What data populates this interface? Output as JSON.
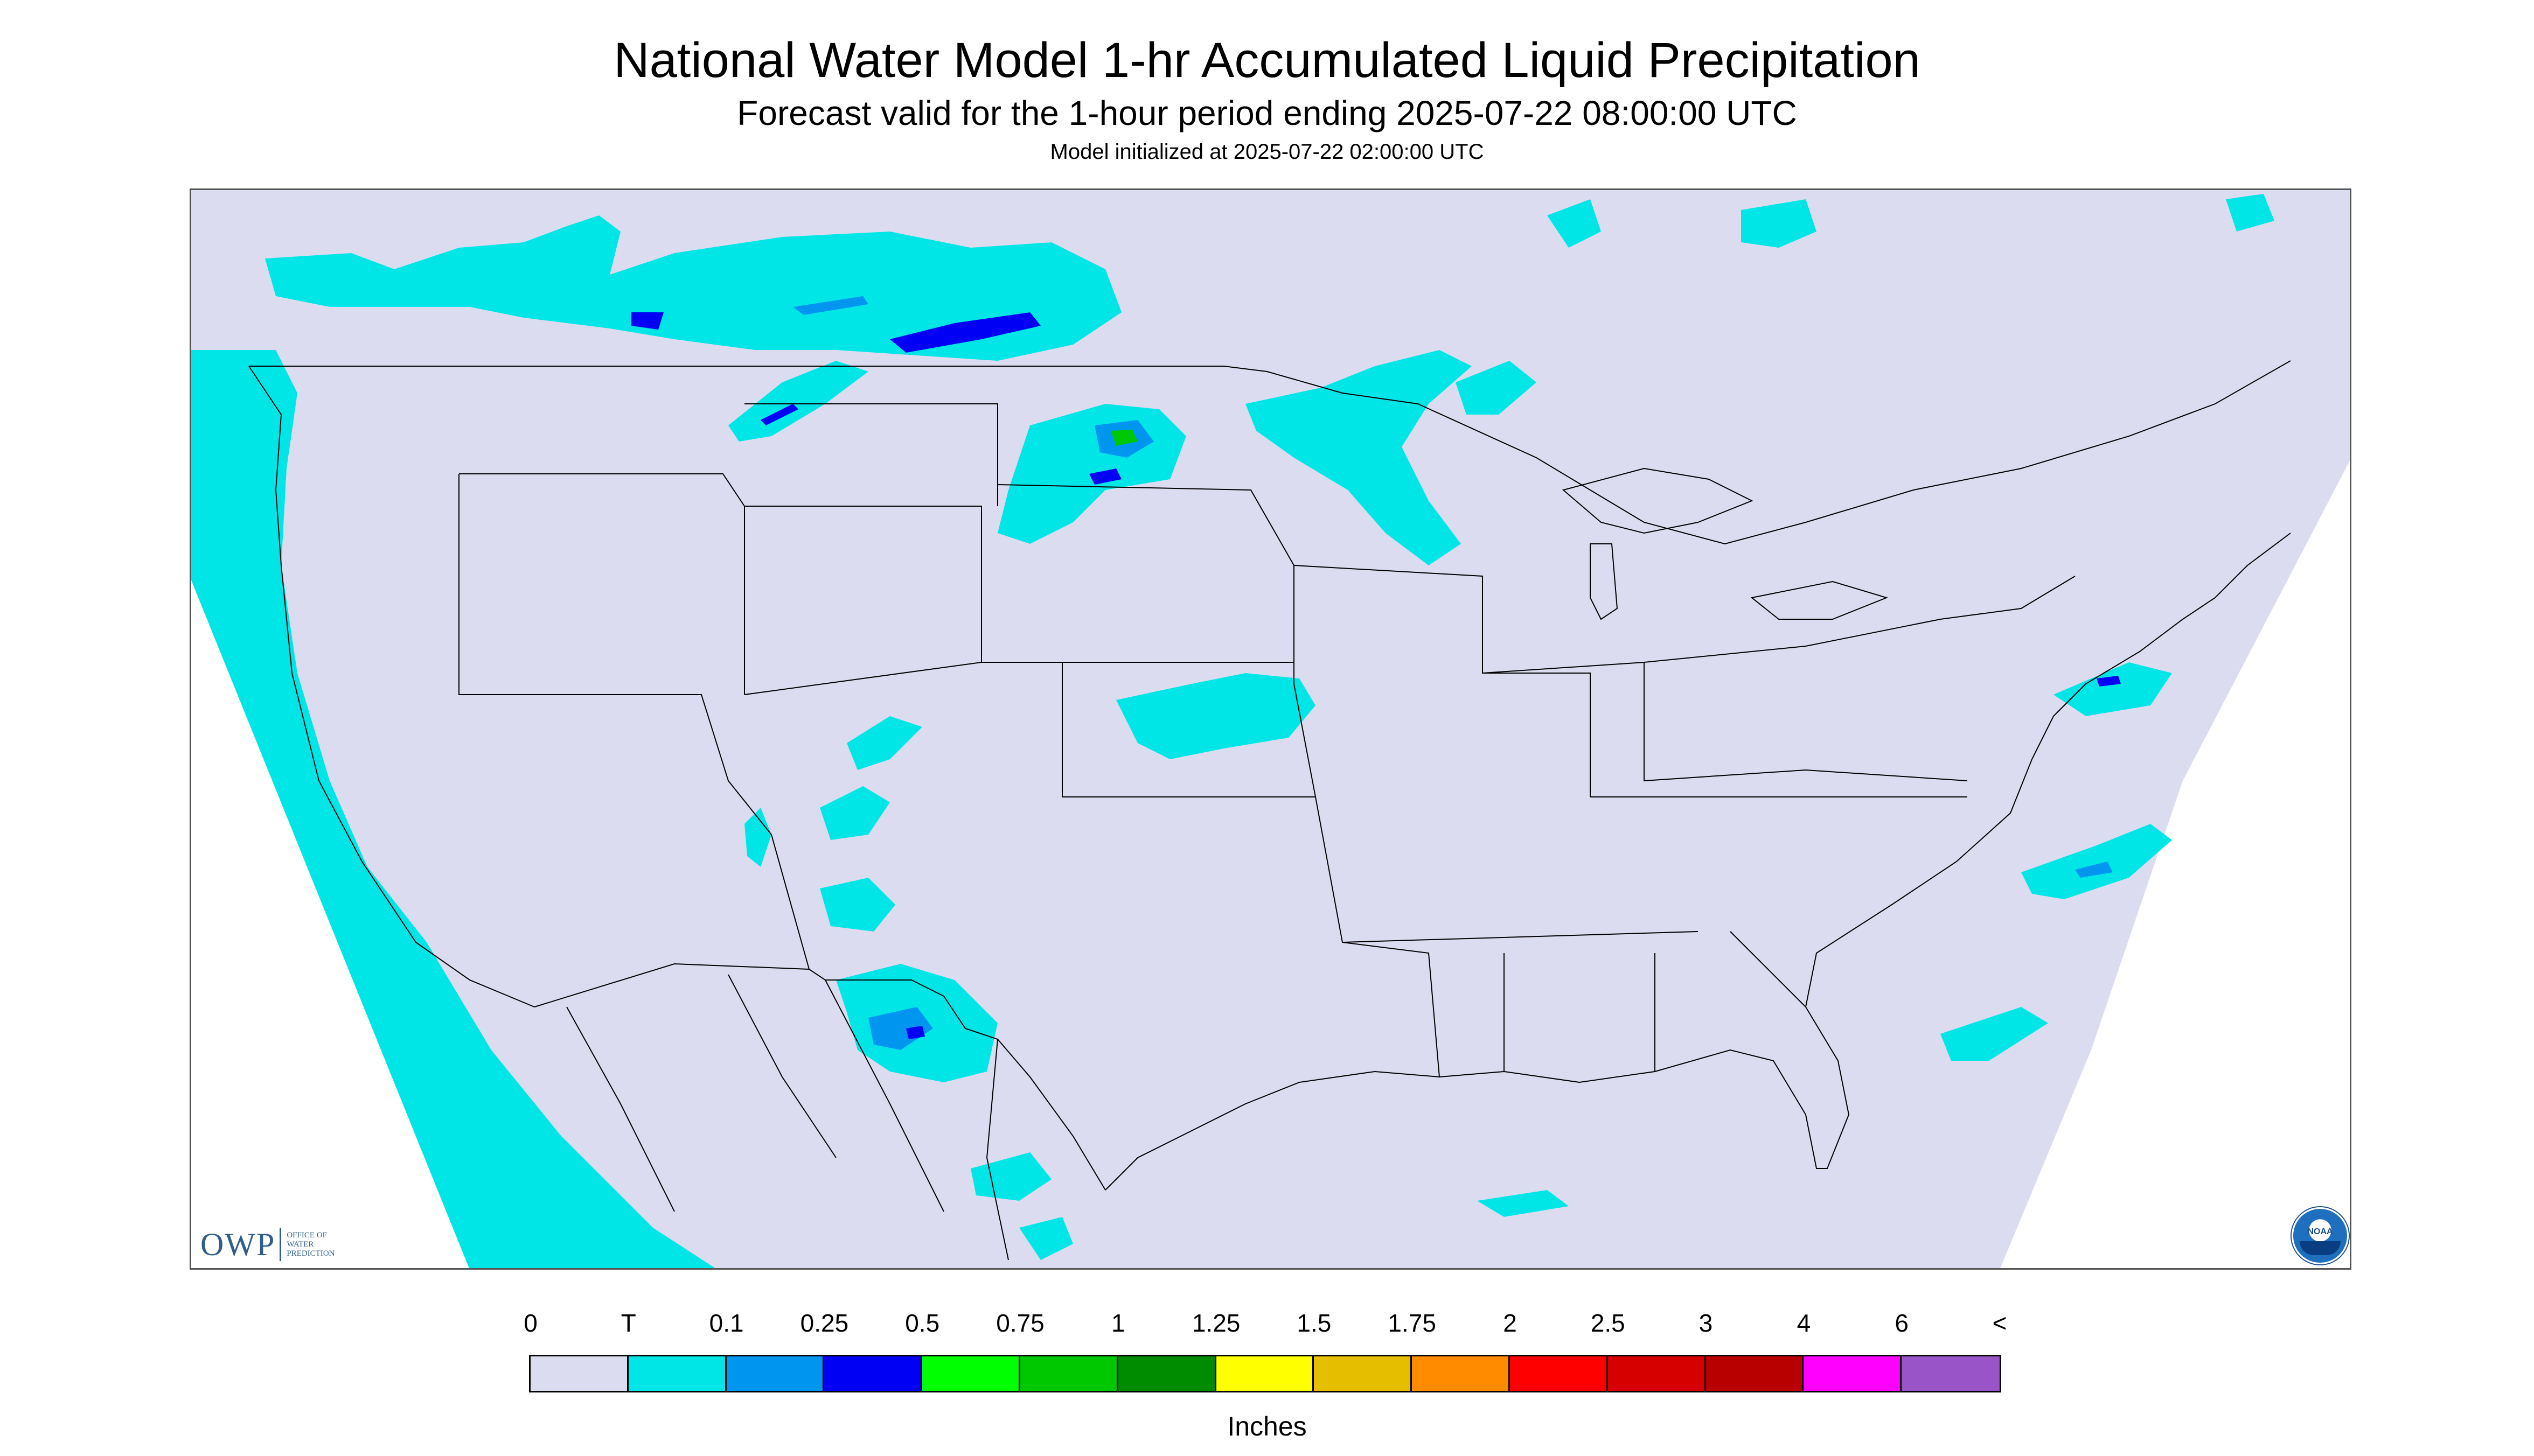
{
  "title": "National Water Model 1-hr Accumulated Liquid Precipitation",
  "subtitle": "Forecast valid for the 1-hour period ending 2025-07-22 08:00:00 UTC",
  "init_line": "Model initialized at 2025-07-22 02:00:00 UTC",
  "logos": {
    "owp_mark": "OWP",
    "owp_text": [
      "OFFICE OF",
      "WATER",
      "PREDICTION"
    ],
    "noaa": "NOAA"
  },
  "legend": {
    "labels": [
      "0",
      "T",
      "0.1",
      "0.25",
      "0.5",
      "0.75",
      "1",
      "1.25",
      "1.5",
      "1.75",
      "2",
      "2.5",
      "3",
      "4",
      "6",
      "<"
    ],
    "colors": [
      "#dcdcf0",
      "#00e6e6",
      "#0096f0",
      "#0000f5",
      "#00ff00",
      "#00c800",
      "#008c00",
      "#ffff00",
      "#e6be00",
      "#ff8c00",
      "#ff0000",
      "#d70000",
      "#b90000",
      "#ff00ff",
      "#9955c8"
    ],
    "units": "Inches"
  },
  "map_colors": {
    "domain": "#dcdcf0",
    "outside": "#ffffff",
    "trace": "#00e6e6",
    "light": "#0096f0",
    "moderate": "#0000f5",
    "heavy": "#00c800",
    "boundary": "#000000"
  }
}
